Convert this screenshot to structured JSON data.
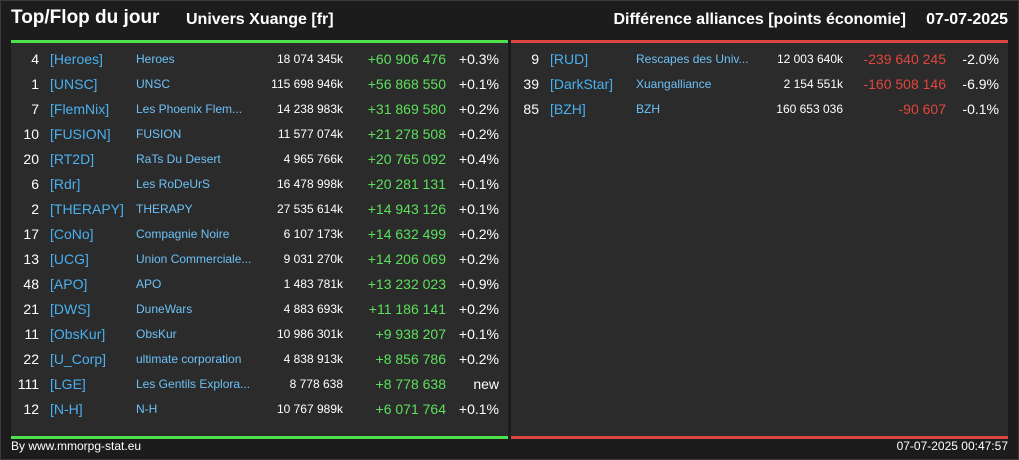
{
  "header": {
    "title": "Top/Flop du jour",
    "universe": "Univers Xuange [fr]",
    "right_title": "Différence alliances [points économie]",
    "date": "07-07-2025"
  },
  "top": [
    {
      "rank": "4",
      "tag": "[Heroes]",
      "name": "Heroes",
      "points": "18 074 345k",
      "diff": "+60 906 476",
      "pct": "+0.3%"
    },
    {
      "rank": "1",
      "tag": "[UNSC]",
      "name": "UNSC",
      "points": "115 698 946k",
      "diff": "+56 868 550",
      "pct": "+0.1%"
    },
    {
      "rank": "7",
      "tag": "[FlemNix]",
      "name": "Les Phoenix Flem...",
      "points": "14 238 983k",
      "diff": "+31 869 580",
      "pct": "+0.2%"
    },
    {
      "rank": "10",
      "tag": "[FUSION]",
      "name": "FUSION",
      "points": "11 577 074k",
      "diff": "+21 278 508",
      "pct": "+0.2%"
    },
    {
      "rank": "20",
      "tag": "[RT2D]",
      "name": "RaTs Du Desert",
      "points": "4 965 766k",
      "diff": "+20 765 092",
      "pct": "+0.4%"
    },
    {
      "rank": "6",
      "tag": "[Rdr]",
      "name": "Les RoDeUrS",
      "points": "16 478 998k",
      "diff": "+20 281 131",
      "pct": "+0.1%"
    },
    {
      "rank": "2",
      "tag": "[THERAPY]",
      "name": "THERAPY",
      "points": "27 535 614k",
      "diff": "+14 943 126",
      "pct": "+0.1%"
    },
    {
      "rank": "17",
      "tag": "[CoNo]",
      "name": "Compagnie Noire",
      "points": "6 107 173k",
      "diff": "+14 632 499",
      "pct": "+0.2%"
    },
    {
      "rank": "13",
      "tag": "[UCG]",
      "name": "Union Commerciale...",
      "points": "9 031 270k",
      "diff": "+14 206 069",
      "pct": "+0.2%"
    },
    {
      "rank": "48",
      "tag": "[APO]",
      "name": "APO",
      "points": "1 483 781k",
      "diff": "+13 232 023",
      "pct": "+0.9%"
    },
    {
      "rank": "21",
      "tag": "[DWS]",
      "name": "DuneWars",
      "points": "4 883 693k",
      "diff": "+11 186 141",
      "pct": "+0.2%"
    },
    {
      "rank": "11",
      "tag": "[ObsKur]",
      "name": "ObsKur",
      "points": "10 986 301k",
      "diff": "+9 938 207",
      "pct": "+0.1%"
    },
    {
      "rank": "22",
      "tag": "[U_Corp]",
      "name": "ultimate corporation",
      "points": "4 838 913k",
      "diff": "+8 856 786",
      "pct": "+0.2%"
    },
    {
      "rank": "111",
      "tag": "[LGE]",
      "name": "Les Gentils Explora...",
      "points": "8 778 638",
      "diff": "+8 778 638",
      "pct": "new"
    },
    {
      "rank": "12",
      "tag": "[N-H]",
      "name": "N-H",
      "points": "10 767 989k",
      "diff": "+6 071 764",
      "pct": "+0.1%"
    }
  ],
  "flop": [
    {
      "rank": "9",
      "tag": "[RUD]",
      "name": "Rescapes des Univ...",
      "points": "12 003 640k",
      "diff": "-239 640 245",
      "pct": "-2.0%"
    },
    {
      "rank": "39",
      "tag": "[DarkStar]",
      "name": "Xuangalliance",
      "points": "2 154 551k",
      "diff": "-160 508 146",
      "pct": "-6.9%"
    },
    {
      "rank": "85",
      "tag": "[BZH]",
      "name": "BZH",
      "points": "160 653 036",
      "diff": "-90 607",
      "pct": "-0.1%"
    }
  ],
  "footer": {
    "source": "By www.mmorpg-stat.eu",
    "timestamp": "07-07-2025 00:47:57"
  },
  "colors": {
    "positive": "#5ce05c",
    "negative": "#e0453c",
    "tag": "#4ab0f0"
  }
}
